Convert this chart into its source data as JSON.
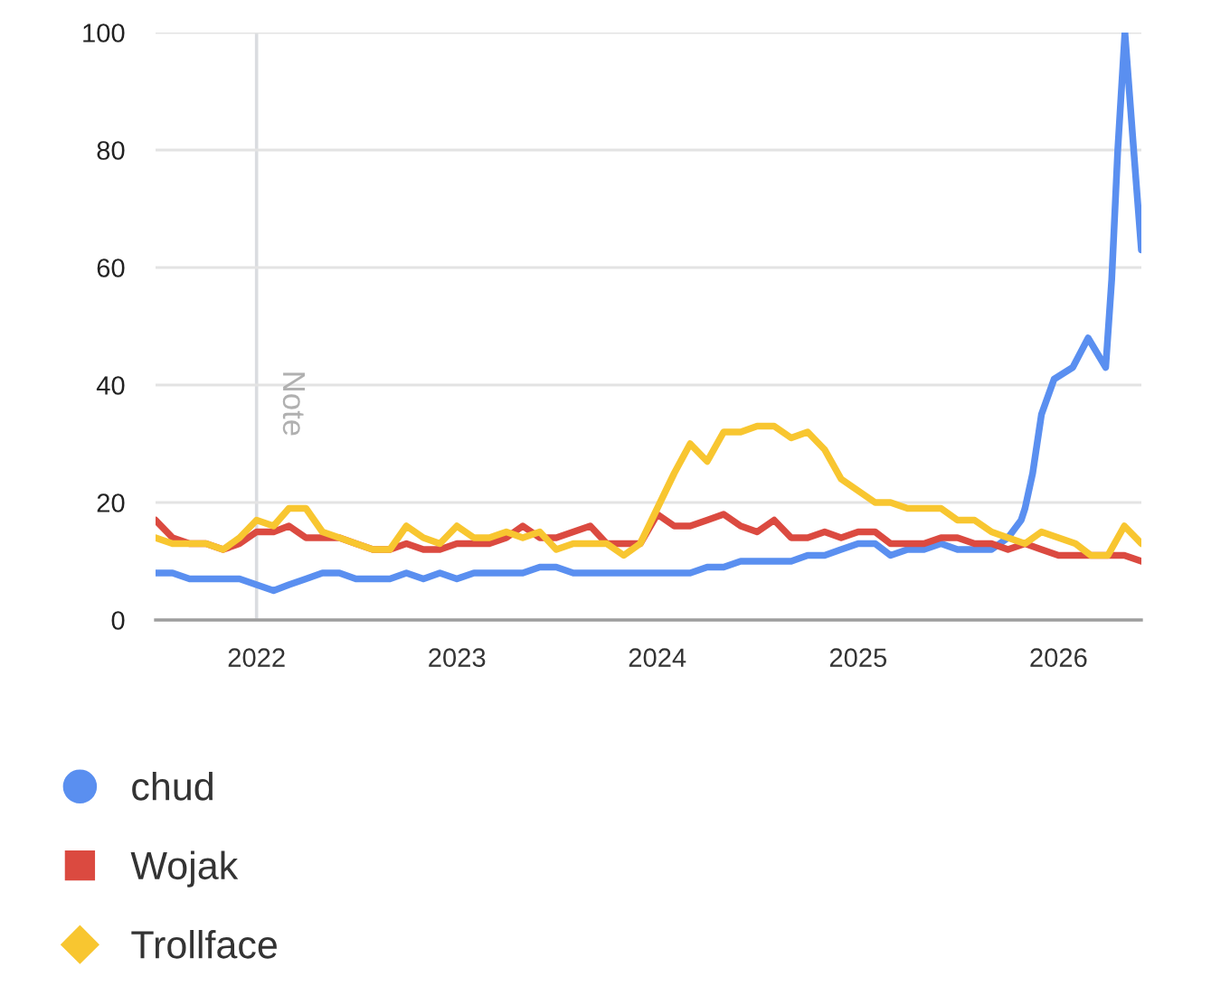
{
  "chart_data": {
    "type": "line",
    "x": [
      "2021-07",
      "2021-08",
      "2021-09",
      "2021-10",
      "2021-11",
      "2021-12",
      "2022-01",
      "2022-02",
      "2022-03",
      "2022-04",
      "2022-05",
      "2022-06",
      "2022-07",
      "2022-08",
      "2022-09",
      "2022-10",
      "2022-11",
      "2022-12",
      "2023-01",
      "2023-02",
      "2023-03",
      "2023-04",
      "2023-05",
      "2023-06",
      "2023-07",
      "2023-08",
      "2023-09",
      "2023-10",
      "2023-11",
      "2023-12",
      "2024-01",
      "2024-02",
      "2024-03",
      "2024-04",
      "2024-05",
      "2024-06",
      "2024-07",
      "2024-08",
      "2024-09",
      "2024-10",
      "2024-11",
      "2024-12",
      "2025-01",
      "2025-02",
      "2025-03",
      "2025-04",
      "2025-05",
      "2025-06",
      "2025-07",
      "2025-08",
      "2025-09",
      "2025-10",
      "2025-11",
      "2025-12",
      "2026-01",
      "2026-02",
      "2026-03",
      "2026-04",
      "2026-05",
      "2026-06"
    ],
    "series": [
      {
        "name": "chud",
        "color": "#5a8ff0",
        "x": [
          "2021-07",
          "2021-08",
          "2021-09",
          "2021-10",
          "2021-11",
          "2021-12",
          "2022-01",
          "2022-02",
          "2022-03",
          "2022-04",
          "2022-05",
          "2022-06",
          "2022-07",
          "2022-08",
          "2022-09",
          "2022-10",
          "2022-11",
          "2022-12",
          "2023-01",
          "2023-02",
          "2023-03",
          "2023-04",
          "2023-05",
          "2023-06",
          "2023-07",
          "2023-08",
          "2023-09",
          "2023-10",
          "2023-11",
          "2023-12",
          "2024-01",
          "2024-02",
          "2024-03",
          "2024-04",
          "2024-05",
          "2024-06",
          "2024-07",
          "2024-08",
          "2024-09",
          "2024-10",
          "2024-11",
          "2024-12",
          "2025-01",
          "2025-02",
          "2025-03",
          "2025-04",
          "2025-05",
          "2025-06",
          "2025-07",
          "2025-08",
          "2025-09",
          "2025-10",
          "2025-10-25",
          "2025-11",
          "2025-11-15",
          "2025-12",
          "2025-12-24",
          "2026-01-27",
          "2026-02-24",
          "2026-03-28",
          "2026-04-08",
          "2026-04-19",
          "2026-05-02",
          "2026-05-18",
          "2026-06"
        ],
        "values": [
          8,
          8,
          7,
          7,
          7,
          7,
          6,
          5,
          6,
          7,
          8,
          8,
          7,
          7,
          7,
          8,
          7,
          8,
          7,
          8,
          8,
          8,
          8,
          9,
          9,
          8,
          8,
          8,
          8,
          8,
          8,
          8,
          8,
          9,
          9,
          10,
          10,
          10,
          10,
          11,
          11,
          12,
          13,
          13,
          11,
          12,
          12,
          13,
          12,
          12,
          12,
          14,
          17,
          19,
          25,
          35,
          41,
          43,
          48,
          43,
          58,
          80,
          100,
          80,
          63
        ]
      },
      {
        "name": "Wojak",
        "color": "#db4a40",
        "values": [
          17,
          14,
          13,
          13,
          12,
          13,
          15,
          15,
          16,
          14,
          14,
          14,
          13,
          12,
          12,
          13,
          12,
          12,
          13,
          13,
          13,
          14,
          16,
          14,
          14,
          15,
          16,
          13,
          13,
          13,
          18,
          16,
          16,
          17,
          18,
          16,
          15,
          17,
          14,
          14,
          15,
          14,
          15,
          15,
          13,
          13,
          13,
          14,
          14,
          13,
          13,
          12,
          13,
          12,
          11,
          11,
          11,
          11,
          11,
          10
        ]
      },
      {
        "name": "Trollface",
        "color": "#f8c630",
        "values": [
          14,
          13,
          13,
          13,
          12,
          14,
          17,
          16,
          19,
          19,
          15,
          14,
          13,
          12,
          12,
          16,
          14,
          13,
          16,
          14,
          14,
          15,
          14,
          15,
          12,
          13,
          13,
          13,
          11,
          13,
          19,
          25,
          30,
          27,
          32,
          32,
          33,
          33,
          31,
          32,
          29,
          24,
          22,
          20,
          20,
          19,
          19,
          19,
          17,
          17,
          15,
          14,
          13,
          15,
          14,
          13,
          11,
          11,
          16,
          13
        ]
      }
    ],
    "xlim": [
      "2021-07",
      "2026-06"
    ],
    "ylim": [
      0,
      100
    ],
    "xticks": [
      "2022",
      "2023",
      "2024",
      "2025",
      "2026"
    ],
    "yticks": [
      0,
      20,
      40,
      60,
      80,
      100
    ],
    "grid": "y",
    "legend": "bottom left",
    "line_style": "solid",
    "ref_lines": [
      {
        "axis": "x",
        "value": "2022-01",
        "label": "Note",
        "color": "#dadce0"
      }
    ]
  }
}
